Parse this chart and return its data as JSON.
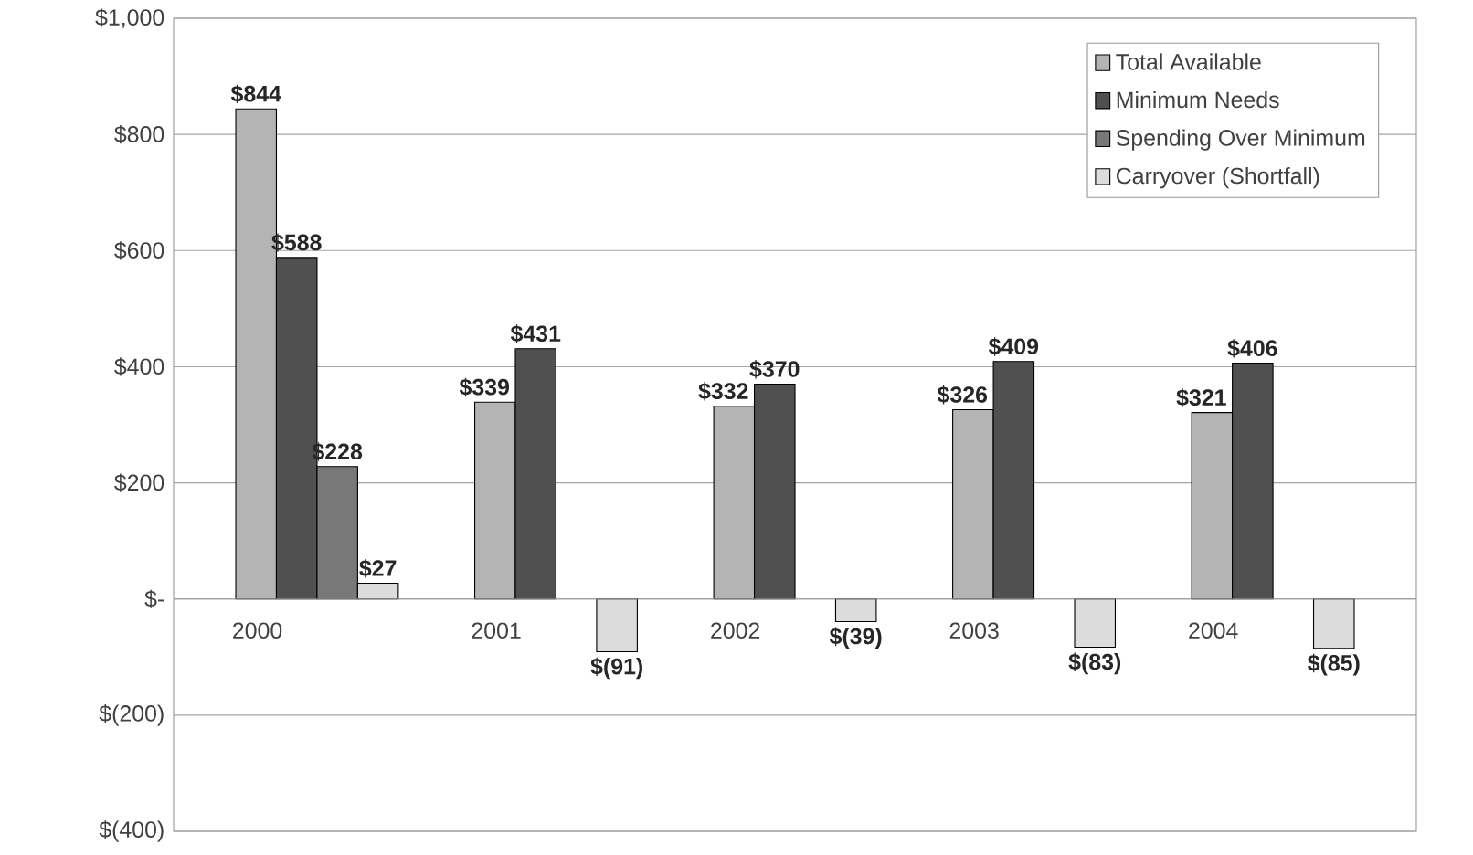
{
  "chart_data": {
    "type": "bar",
    "categories": [
      "2000",
      "2001",
      "2002",
      "2003",
      "2004"
    ],
    "series": [
      {
        "name": "Total Available",
        "color": "#b4b4b4",
        "values": [
          844,
          339,
          332,
          326,
          321
        ],
        "value_labels": [
          "$844",
          "$339",
          "$332",
          "$326",
          "$321"
        ]
      },
      {
        "name": "Minimum Needs",
        "color": "#505050",
        "values": [
          588,
          431,
          370,
          409,
          406
        ],
        "value_labels": [
          "$588",
          "$431",
          "$370",
          "$409",
          "$406"
        ]
      },
      {
        "name": "Spending Over Minimum",
        "color": "#787878",
        "values": [
          228,
          null,
          null,
          null,
          null
        ],
        "value_labels": [
          "$228",
          null,
          null,
          null,
          null
        ]
      },
      {
        "name": "Carryover (Shortfall)",
        "color": "#dcdcdc",
        "values": [
          27,
          -91,
          -39,
          -83,
          -85
        ],
        "value_labels": [
          "$27",
          "$(91)",
          "$(39)",
          "$(83)",
          "$(85)"
        ]
      }
    ],
    "ylim": [
      -400,
      1000
    ],
    "yticks": [
      {
        "value": 1000,
        "label": "$1,000"
      },
      {
        "value": 800,
        "label": "$800"
      },
      {
        "value": 600,
        "label": "$600"
      },
      {
        "value": 400,
        "label": "$400"
      },
      {
        "value": 200,
        "label": "$200"
      },
      {
        "value": 0,
        "label": "$-"
      },
      {
        "value": -200,
        "label": "$(200)"
      },
      {
        "value": -400,
        "label": "$(400)"
      }
    ],
    "grid": "y",
    "legend": "top right"
  }
}
